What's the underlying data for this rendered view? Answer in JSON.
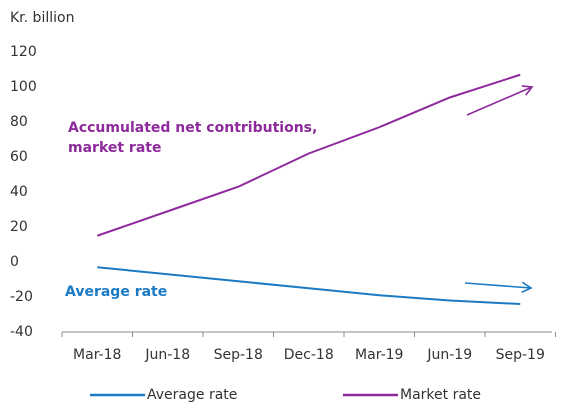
{
  "chart_data": {
    "type": "line",
    "y_label": "Kr. billion",
    "categories": [
      "Mar-18",
      "Jun-18",
      "Sep-18",
      "Dec-18",
      "Mar-19",
      "Jun-19",
      "Sep-19"
    ],
    "series": [
      {
        "name": "Average rate",
        "color": "#1a7bc4",
        "values": [
          -3,
          -7,
          -11,
          -15,
          -19,
          -22,
          -24
        ]
      },
      {
        "name": "Market rate",
        "color": "#8e2a9c",
        "values": [
          15,
          29,
          43,
          62,
          77,
          94,
          107
        ]
      }
    ],
    "ylim": [
      -40,
      120
    ],
    "yticks": [
      -40,
      -20,
      0,
      20,
      40,
      60,
      80,
      100,
      120
    ],
    "annotations": [
      {
        "text": "Accumulated net contributions,",
        "color": "#8e2a9c"
      },
      {
        "text": "market rate",
        "color": "#8e2a9c"
      },
      {
        "text": "Average rate",
        "color": "#1a7bc4"
      }
    ],
    "legend": "bottom"
  }
}
